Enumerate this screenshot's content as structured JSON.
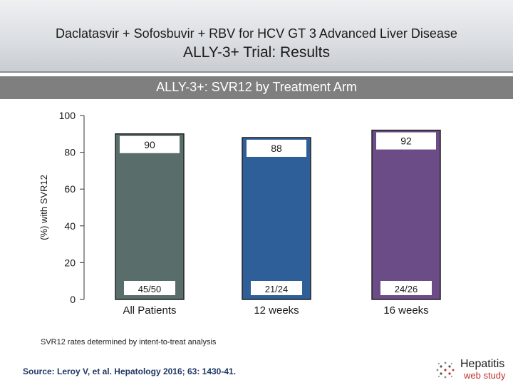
{
  "header": {
    "title_line1": "Daclatasvir + Sofosbuvir + RBV for HCV GT 3 Advanced Liver Disease",
    "title_line2": "ALLY-3+ Trial: Results"
  },
  "banner": {
    "text": "ALLY-3+: SVR12 by Treatment Arm"
  },
  "chart_data": {
    "type": "bar",
    "categories": [
      "All Patients",
      "12 weeks",
      "16 weeks"
    ],
    "values": [
      90,
      88,
      92
    ],
    "value_labels": [
      "90",
      "88",
      "92"
    ],
    "fractions": [
      "45/50",
      "21/24",
      "24/26"
    ],
    "colors": [
      "#596e6a",
      "#2f5f99",
      "#6b4c86"
    ],
    "ylabel": "(%) with SVR12",
    "ylim": [
      0,
      100
    ],
    "yticks": [
      0,
      20,
      40,
      60,
      80,
      100
    ],
    "grid": false
  },
  "footnote": "SVR12 rates determined by intent-to-treat analysis",
  "source": "Source: Leroy V, et al. Hepatology 2016; 63: 1430-41.",
  "logo": {
    "word1": "Hepatitis",
    "word2": "web study"
  },
  "colors": {
    "banner": "#7f7f7f",
    "source_text": "#1f3864",
    "logo_accent": "#c0302a"
  }
}
